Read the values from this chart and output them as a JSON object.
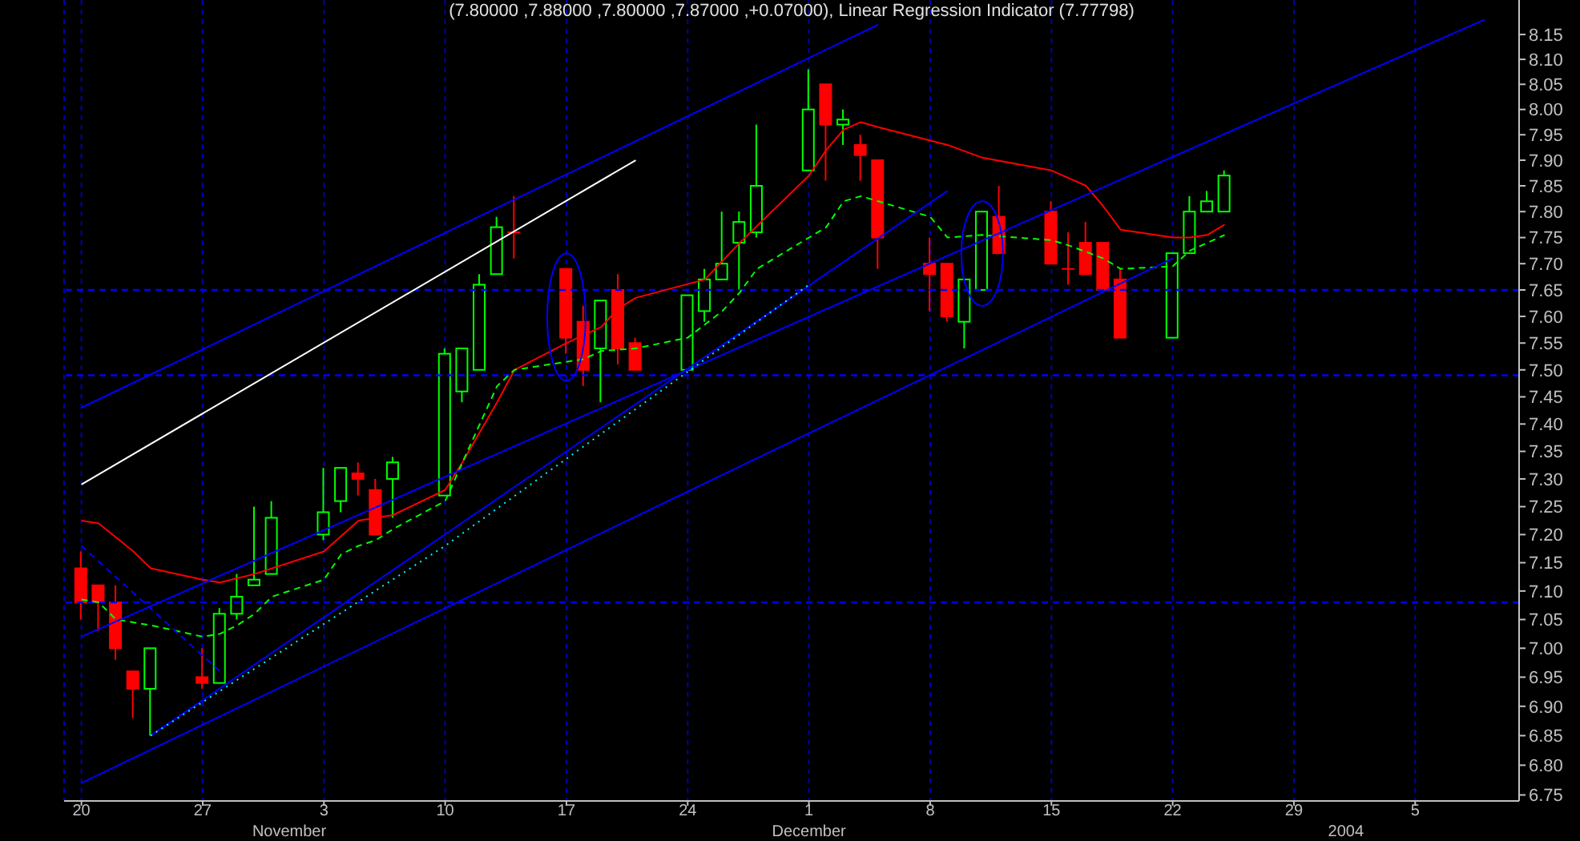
{
  "chart_data": {
    "type": "candlestick",
    "title": "(7.80000 ,7.88000 ,7.80000 ,7.87000 ,+0.07000), Linear Regression Indicator (7.77798)",
    "x": [
      "2003-10-20",
      "2003-10-21",
      "2003-10-22",
      "2003-10-23",
      "2003-10-24",
      "2003-10-27",
      "2003-10-28",
      "2003-10-29",
      "2003-10-30",
      "2003-10-31",
      "2003-11-03",
      "2003-11-04",
      "2003-11-05",
      "2003-11-06",
      "2003-11-07",
      "2003-11-10",
      "2003-11-11",
      "2003-11-12",
      "2003-11-13",
      "2003-11-14",
      "2003-11-17",
      "2003-11-18",
      "2003-11-19",
      "2003-11-20",
      "2003-11-21",
      "2003-11-24",
      "2003-11-25",
      "2003-11-26",
      "2003-11-27",
      "2003-11-28",
      "2003-12-01",
      "2003-12-02",
      "2003-12-03",
      "2003-12-04",
      "2003-12-05",
      "2003-12-08",
      "2003-12-09",
      "2003-12-10",
      "2003-12-11",
      "2003-12-12",
      "2003-12-15",
      "2003-12-16",
      "2003-12-17",
      "2003-12-18",
      "2003-12-19",
      "2003-12-22",
      "2003-12-23",
      "2003-12-24",
      "2003-12-25"
    ],
    "ohlc": [
      [
        7.14,
        7.17,
        7.05,
        7.08
      ],
      [
        7.11,
        7.11,
        7.03,
        7.08
      ],
      [
        7.08,
        7.11,
        6.98,
        7.0
      ],
      [
        6.96,
        6.96,
        6.88,
        6.93
      ],
      [
        6.93,
        7.0,
        6.85,
        7.0
      ],
      [
        6.95,
        7.0,
        6.93,
        6.94
      ],
      [
        6.94,
        7.07,
        6.94,
        7.06
      ],
      [
        7.06,
        7.13,
        7.05,
        7.09
      ],
      [
        7.11,
        7.25,
        7.11,
        7.12
      ],
      [
        7.13,
        7.26,
        7.13,
        7.23
      ],
      [
        7.2,
        7.32,
        7.19,
        7.24
      ],
      [
        7.26,
        7.32,
        7.24,
        7.32
      ],
      [
        7.31,
        7.33,
        7.27,
        7.3
      ],
      [
        7.28,
        7.3,
        7.2,
        7.2
      ],
      [
        7.3,
        7.34,
        7.23,
        7.33
      ],
      [
        7.27,
        7.54,
        7.27,
        7.53
      ],
      [
        7.46,
        7.54,
        7.44,
        7.54
      ],
      [
        7.5,
        7.68,
        7.5,
        7.66
      ],
      [
        7.68,
        7.79,
        7.68,
        7.77
      ],
      [
        7.76,
        7.83,
        7.71,
        7.76
      ],
      [
        7.69,
        7.69,
        7.53,
        7.56
      ],
      [
        7.59,
        7.62,
        7.47,
        7.5
      ],
      [
        7.54,
        7.63,
        7.44,
        7.63
      ],
      [
        7.65,
        7.68,
        7.51,
        7.54
      ],
      [
        7.55,
        7.56,
        7.5,
        7.5
      ],
      [
        7.5,
        7.64,
        7.5,
        7.64
      ],
      [
        7.61,
        7.69,
        7.59,
        7.67
      ],
      [
        7.67,
        7.8,
        7.67,
        7.7
      ],
      [
        7.74,
        7.8,
        7.65,
        7.78
      ],
      [
        7.76,
        7.97,
        7.75,
        7.85
      ],
      [
        7.88,
        8.08,
        7.88,
        8.0
      ],
      [
        8.05,
        8.05,
        7.86,
        7.97
      ],
      [
        7.97,
        8.0,
        7.93,
        7.98
      ],
      [
        7.93,
        7.95,
        7.86,
        7.91
      ],
      [
        7.9,
        7.9,
        7.69,
        7.75
      ],
      [
        7.7,
        7.75,
        7.61,
        7.68
      ],
      [
        7.7,
        7.7,
        7.59,
        7.6
      ],
      [
        7.59,
        7.67,
        7.54,
        7.67
      ],
      [
        7.65,
        7.8,
        7.65,
        7.8
      ],
      [
        7.79,
        7.85,
        7.72,
        7.72
      ],
      [
        7.8,
        7.82,
        7.7,
        7.7
      ],
      [
        7.69,
        7.76,
        7.66,
        7.69
      ],
      [
        7.74,
        7.78,
        7.68,
        7.68
      ],
      [
        7.74,
        7.74,
        7.65,
        7.65
      ],
      [
        7.67,
        7.69,
        7.56,
        7.56
      ],
      [
        7.56,
        7.72,
        7.56,
        7.72
      ],
      [
        7.72,
        7.83,
        7.72,
        7.8
      ],
      [
        7.8,
        7.84,
        7.8,
        7.82
      ],
      [
        7.8,
        7.88,
        7.8,
        7.87
      ]
    ],
    "colors": [
      "#ff0000",
      "#ff0000",
      "#ff0000",
      "#ff0000",
      "#00ff00",
      "#ff0000",
      "#00ff00",
      "#00ff00",
      "#00ff00",
      "#00ff00",
      "#00ff00",
      "#00ff00",
      "#ff0000",
      "#ff0000",
      "#00ff00",
      "#00ff00",
      "#00ff00",
      "#00ff00",
      "#00ff00",
      "#ff0000",
      "#ff0000",
      "#ff0000",
      "#00ff00",
      "#ff0000",
      "#ff0000",
      "#00ff00",
      "#00ff00",
      "#00ff00",
      "#00ff00",
      "#00ff00",
      "#00ff00",
      "#ff0000",
      "#00ff00",
      "#ff0000",
      "#ff0000",
      "#ff0000",
      "#ff0000",
      "#00ff00",
      "#00ff00",
      "#ff0000",
      "#ff0000",
      "#ff0000",
      "#ff0000",
      "#ff0000",
      "#ff0000",
      "#00ff00",
      "#00ff00",
      "#00ff00",
      "#00ff00"
    ],
    "series": [
      {
        "type": "line",
        "color": "#ff0000",
        "line_style": "solid",
        "x": [
          "2003-10-20",
          "2003-10-21",
          "2003-10-23",
          "2003-10-24",
          "2003-10-27",
          "2003-10-28",
          "2003-10-30",
          "2003-11-03",
          "2003-11-05",
          "2003-11-06",
          "2003-11-07",
          "2003-11-10",
          "2003-11-11",
          "2003-11-12",
          "2003-11-13",
          "2003-11-14",
          "2003-11-17",
          "2003-11-19",
          "2003-11-20",
          "2003-11-21",
          "2003-11-25",
          "2003-11-27",
          "2003-12-01",
          "2003-12-02",
          "2003-12-03",
          "2003-12-04",
          "2003-12-05",
          "2003-12-09",
          "2003-12-11",
          "2003-12-15",
          "2003-12-16",
          "2003-12-17",
          "2003-12-18",
          "2003-12-19",
          "2003-12-22",
          "2003-12-23",
          "2003-12-24",
          "2003-12-25"
        ],
        "values": [
          7.225,
          7.22,
          7.17,
          7.14,
          7.12,
          7.115,
          7.13,
          7.17,
          7.225,
          7.23,
          7.235,
          7.28,
          7.33,
          7.385,
          7.44,
          7.5,
          7.55,
          7.58,
          7.615,
          7.635,
          7.67,
          7.74,
          7.87,
          7.92,
          7.96,
          7.975,
          7.965,
          7.93,
          7.905,
          7.88,
          7.865,
          7.85,
          7.81,
          7.765,
          7.75,
          7.75,
          7.755,
          7.775
        ]
      },
      {
        "type": "line",
        "color": "#00ff00",
        "line_style": "dashed",
        "x": [
          "2003-10-20",
          "2003-10-21",
          "2003-10-22",
          "2003-10-24",
          "2003-10-27",
          "2003-10-28",
          "2003-10-29",
          "2003-10-30",
          "2003-10-31",
          "2003-11-03",
          "2003-11-04",
          "2003-11-05",
          "2003-11-06",
          "2003-11-07",
          "2003-11-10",
          "2003-11-11",
          "2003-11-12",
          "2003-11-13",
          "2003-11-14",
          "2003-11-17",
          "2003-11-18",
          "2003-11-19",
          "2003-11-21",
          "2003-11-24",
          "2003-11-26",
          "2003-11-27",
          "2003-11-28",
          "2003-12-02",
          "2003-12-03",
          "2003-12-04",
          "2003-12-05",
          "2003-12-08",
          "2003-12-09",
          "2003-12-11",
          "2003-12-15",
          "2003-12-16",
          "2003-12-18",
          "2003-12-19",
          "2003-12-22",
          "2003-12-23",
          "2003-12-25"
        ],
        "values": [
          7.085,
          7.08,
          7.05,
          7.04,
          7.02,
          7.025,
          7.04,
          7.06,
          7.09,
          7.12,
          7.165,
          7.18,
          7.19,
          7.21,
          7.26,
          7.33,
          7.4,
          7.47,
          7.5,
          7.515,
          7.52,
          7.535,
          7.54,
          7.56,
          7.61,
          7.645,
          7.69,
          7.77,
          7.82,
          7.83,
          7.82,
          7.79,
          7.75,
          7.755,
          7.745,
          7.735,
          7.71,
          7.69,
          7.695,
          7.725,
          7.755
        ]
      },
      {
        "type": "line",
        "color": "#0000ff",
        "line_style": "solid",
        "x": [
          "2003-10-20",
          "2003-12-05"
        ],
        "values": [
          7.43,
          8.17
        ]
      },
      {
        "type": "line",
        "color": "#0000ff",
        "line_style": "solid",
        "x": [
          "2003-10-20",
          "2004-01-09"
        ],
        "values": [
          7.02,
          8.18
        ]
      },
      {
        "type": "line",
        "color": "#0000ff",
        "line_style": "solid",
        "x": [
          "2003-10-20",
          "2003-12-22"
        ],
        "values": [
          6.77,
          7.71
        ]
      },
      {
        "type": "line",
        "color": "#0000ff",
        "line_style": "solid",
        "x": [
          "2003-10-24",
          "2003-12-09"
        ],
        "values": [
          6.85,
          7.84
        ]
      },
      {
        "type": "line",
        "color": "#0000ff",
        "line_style": "dashed",
        "x": [
          "2003-10-20",
          "2003-10-28"
        ],
        "values": [
          7.18,
          6.96
        ]
      },
      {
        "type": "line",
        "color": "#00ffff",
        "line_style": "dotted",
        "x": [
          "2003-10-24",
          "2003-11-10",
          "2003-12-01"
        ],
        "values": [
          6.85,
          7.18,
          7.66
        ]
      },
      {
        "type": "line",
        "color": "#ffffff",
        "line_style": "solid",
        "x": [
          "2003-10-20",
          "2003-11-21"
        ],
        "values": [
          7.29,
          7.9
        ]
      }
    ],
    "ref_lines": [
      {
        "axis": "y",
        "value": 7.65,
        "color": "#0000ff",
        "line_style": "dashed"
      },
      {
        "axis": "y",
        "value": 7.49,
        "color": "#0000ff",
        "line_style": "dashed"
      },
      {
        "axis": "y",
        "value": 7.08,
        "color": "#0000ff",
        "line_style": "dashed"
      }
    ],
    "xlim": [
      "2003-10-19",
      "2004-01-11"
    ],
    "xticks": [
      {
        "value": "2003-10-20",
        "label": "20"
      },
      {
        "value": "2003-10-27",
        "label": "27"
      },
      {
        "value": "2003-11-03",
        "label": "3"
      },
      {
        "value": "2003-11-10",
        "label": "10"
      },
      {
        "value": "2003-11-17",
        "label": "17"
      },
      {
        "value": "2003-11-24",
        "label": "24"
      },
      {
        "value": "2003-12-01",
        "label": "1"
      },
      {
        "value": "2003-12-08",
        "label": "8"
      },
      {
        "value": "2003-12-15",
        "label": "15"
      },
      {
        "value": "2003-12-22",
        "label": "22"
      },
      {
        "value": "2003-12-29",
        "label": "29"
      },
      {
        "value": "2004-01-05",
        "label": "5"
      }
    ],
    "x2lim": [
      "2003-10-19",
      "2004-01-11"
    ],
    "x2ticks": [
      {
        "value": "2003-11-01",
        "label": "November"
      },
      {
        "value": "2003-12-01",
        "label": "December"
      },
      {
        "value": "2004-01-01",
        "label": "2004"
      }
    ],
    "ylim": [
      6.74,
      8.22
    ],
    "yticks": [
      6.75,
      {
        "value": 6.8,
        "label": "6.80"
      },
      6.85,
      {
        "value": 6.9,
        "label": "6.90"
      },
      6.95,
      {
        "value": 7,
        "label": "7.00"
      },
      7.05,
      {
        "value": 7.1,
        "label": "7.10"
      },
      7.15,
      {
        "value": 7.2,
        "label": "7.20"
      },
      7.25,
      {
        "value": 7.3,
        "label": "7.30"
      },
      7.35,
      {
        "value": 7.4,
        "label": "7.40"
      },
      7.45,
      {
        "value": 7.5,
        "label": "7.50"
      },
      7.55,
      {
        "value": 7.6,
        "label": "7.60"
      },
      7.65,
      {
        "value": 7.7,
        "label": "7.70"
      },
      7.75,
      {
        "value": 7.8,
        "label": "7.80"
      },
      7.85,
      {
        "value": 7.9,
        "label": "7.90"
      },
      7.95,
      {
        "value": 8,
        "label": "8.00"
      },
      8.05,
      {
        "value": 8.1,
        "label": "8.10"
      },
      8.15
    ],
    "log": true,
    "grid": "x",
    "marker": "none"
  }
}
